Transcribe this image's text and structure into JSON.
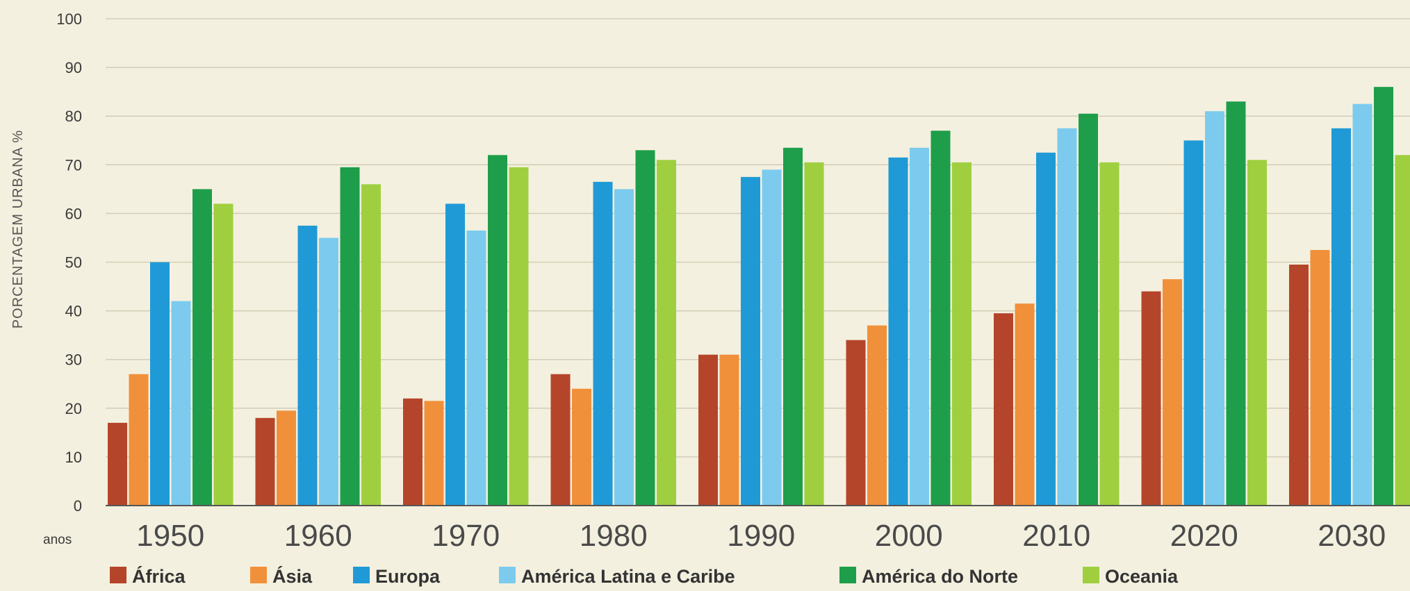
{
  "chart_data": {
    "type": "bar",
    "title": "",
    "xlabel": "anos",
    "ylabel": "PORCENTAGEM URBANA %",
    "ylim": [
      0,
      100
    ],
    "yticks": [
      0,
      10,
      20,
      30,
      40,
      50,
      60,
      70,
      80,
      90,
      100
    ],
    "grid": true,
    "legend_position": "bottom",
    "categories": [
      "1950",
      "1960",
      "1970",
      "1980",
      "1990",
      "2000",
      "2010",
      "2020",
      "2030"
    ],
    "series": [
      {
        "name": "África",
        "color": "#b5452a",
        "values": [
          17,
          18,
          22,
          27,
          31,
          34,
          39.5,
          44,
          49.5
        ]
      },
      {
        "name": "Ásia",
        "color": "#f0903a",
        "values": [
          27,
          19.5,
          21.5,
          24,
          31,
          37,
          41.5,
          46.5,
          52.5
        ]
      },
      {
        "name": "Europa",
        "color": "#1f9ad6",
        "values": [
          50,
          57.5,
          62,
          66.5,
          67.5,
          71.5,
          72.5,
          75,
          77.5
        ]
      },
      {
        "name": "América Latina e Caribe",
        "color": "#7ccbee",
        "values": [
          42,
          55,
          56.5,
          65,
          69,
          73.5,
          77.5,
          81,
          82.5
        ]
      },
      {
        "name": "América do Norte",
        "color": "#1e9e4a",
        "values": [
          65,
          69.5,
          72,
          73,
          73.5,
          77,
          80.5,
          83,
          86
        ]
      },
      {
        "name": "Oceania",
        "color": "#9fcf3f",
        "values": [
          62,
          66,
          69.5,
          71,
          70.5,
          70.5,
          70.5,
          71,
          72
        ]
      }
    ]
  }
}
